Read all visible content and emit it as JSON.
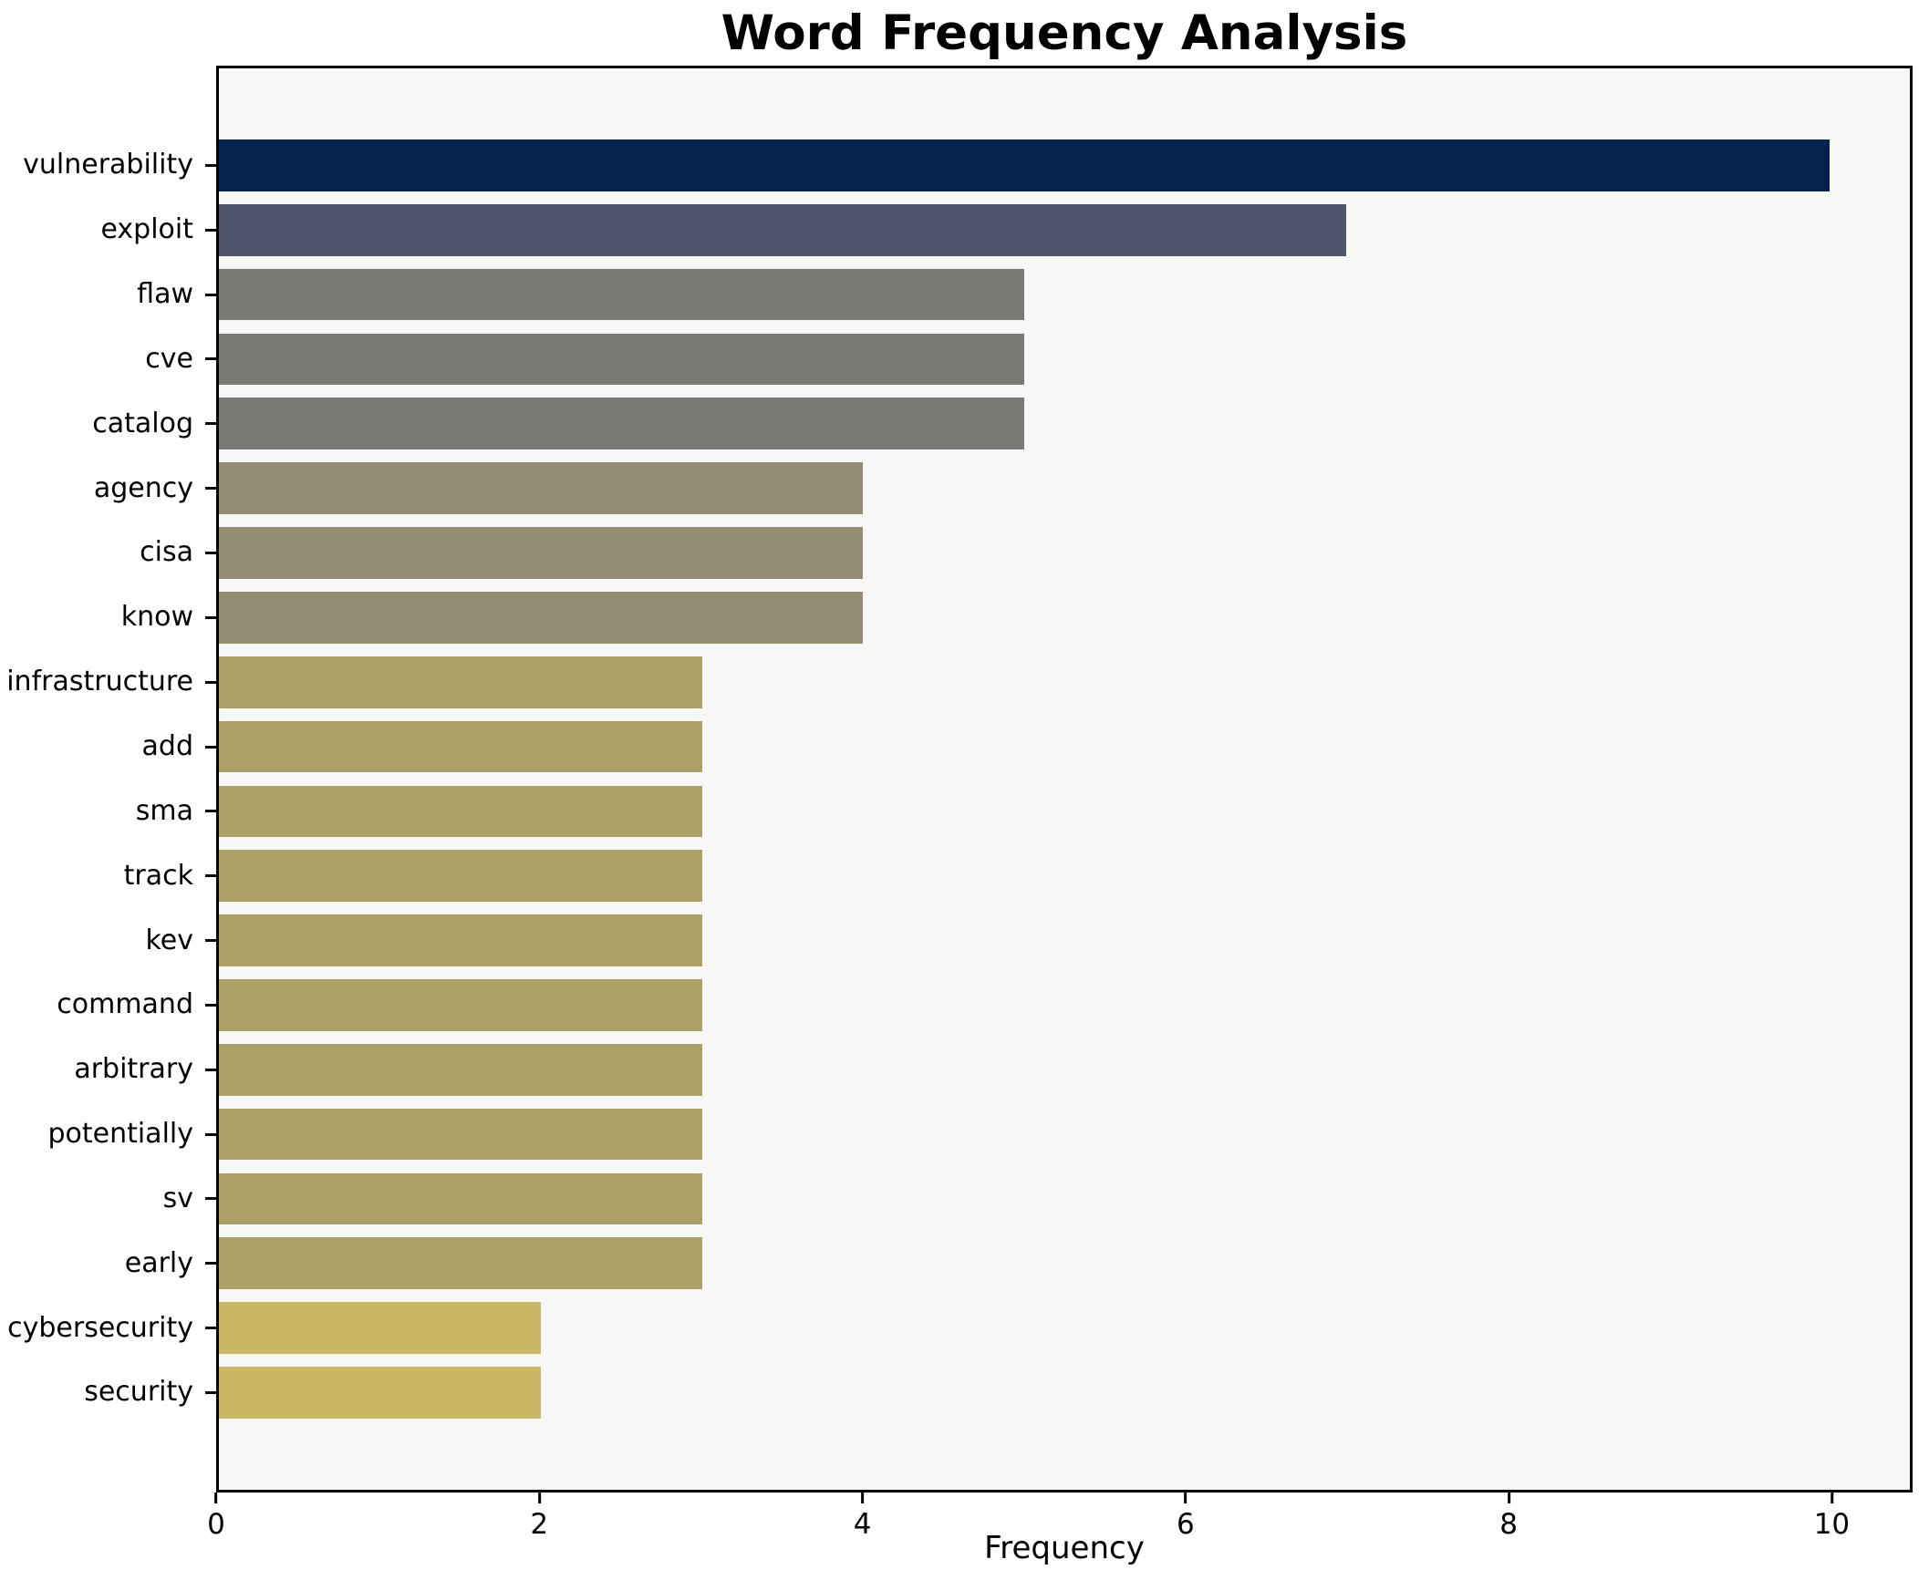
{
  "title": "Word Frequency Analysis",
  "chart_data": {
    "type": "bar",
    "orientation": "horizontal",
    "title": "Word Frequency Analysis",
    "xlabel": "Frequency",
    "ylabel": "",
    "xlim": [
      0,
      10.5
    ],
    "xticks": [
      0,
      2,
      4,
      6,
      8,
      10
    ],
    "grid": false,
    "legend": null,
    "categories": [
      "vulnerability",
      "exploit",
      "flaw",
      "cve",
      "catalog",
      "agency",
      "cisa",
      "know",
      "infrastructure",
      "add",
      "sma",
      "track",
      "kev",
      "command",
      "arbitrary",
      "potentially",
      "sv",
      "early",
      "cybersecurity",
      "security"
    ],
    "values": [
      10,
      7,
      5,
      5,
      5,
      4,
      4,
      4,
      3,
      3,
      3,
      3,
      3,
      3,
      3,
      3,
      3,
      3,
      2,
      2
    ],
    "bar_colors": [
      "#03224e",
      "#4f566b",
      "#7a7975",
      "#7a7975",
      "#7a7975",
      "#948c73",
      "#948c73",
      "#948c73",
      "#aba066",
      "#aba066",
      "#aba066",
      "#aba066",
      "#aba066",
      "#aba066",
      "#aba066",
      "#aba066",
      "#aba066",
      "#aba066",
      "#c9b765",
      "#c9b765"
    ]
  },
  "colors": {
    "figure_bg": "#ffffff",
    "plot_bg": "#f7f7f5",
    "spine": "#000000",
    "text": "#000000"
  }
}
